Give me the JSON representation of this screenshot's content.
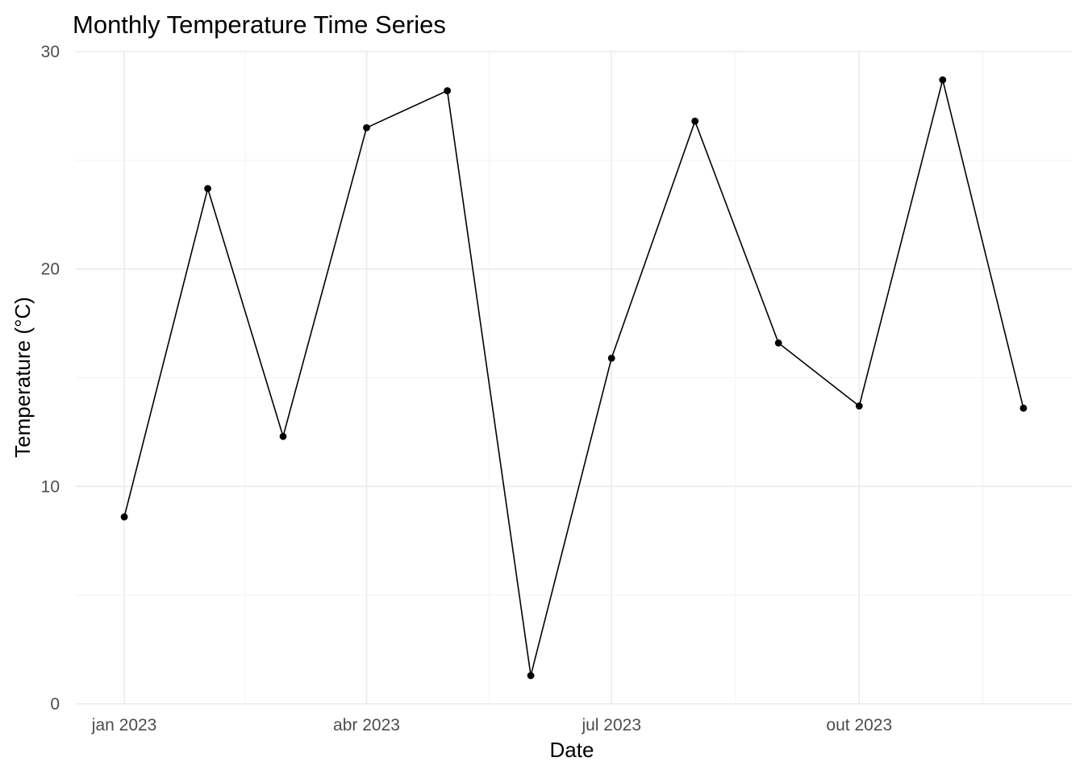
{
  "chart_data": {
    "type": "line",
    "title": "Monthly Temperature Time Series",
    "xlabel": "Date",
    "ylabel": "Temperature (°C)",
    "x": [
      "2023-01-01",
      "2023-02-01",
      "2023-03-01",
      "2023-04-01",
      "2023-05-01",
      "2023-06-01",
      "2023-07-01",
      "2023-08-01",
      "2023-09-01",
      "2023-10-01",
      "2023-11-01",
      "2023-12-01"
    ],
    "series": [
      {
        "values": [
          8.6,
          23.7,
          12.3,
          26.5,
          28.2,
          1.3,
          15.9,
          26.8,
          16.6,
          13.7,
          28.7,
          13.6
        ]
      }
    ],
    "ylim": [
      0,
      30
    ],
    "xlim": [
      "2022-12-14",
      "2023-12-19"
    ],
    "y_ticks": [
      0,
      10,
      20,
      30
    ],
    "x_ticks": [
      {
        "date": "2023-01-01",
        "label": "jan 2023"
      },
      {
        "date": "2023-04-01",
        "label": "abr 2023"
      },
      {
        "date": "2023-07-01",
        "label": "jul 2023"
      },
      {
        "date": "2023-10-01",
        "label": "out 2023"
      }
    ],
    "grid": true,
    "legend": "none"
  }
}
